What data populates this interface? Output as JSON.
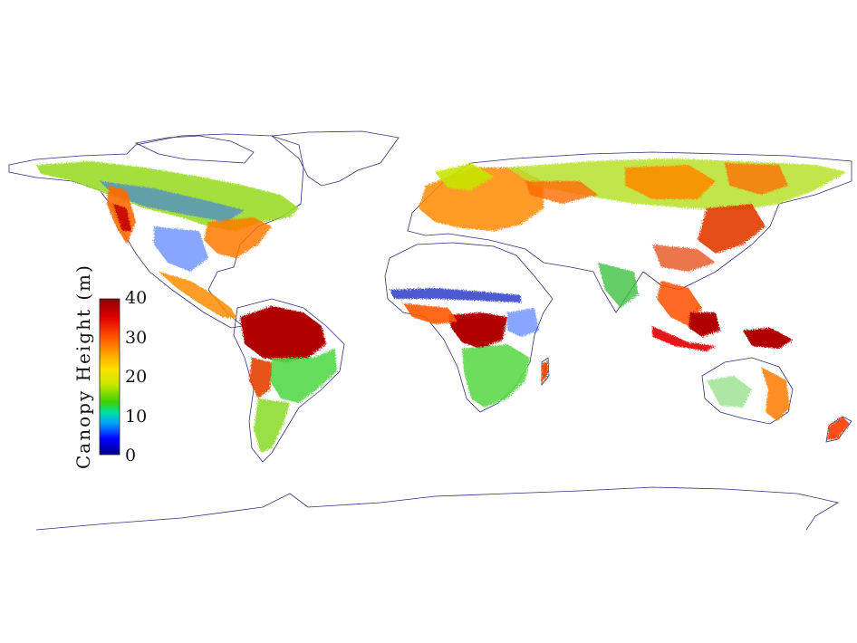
{
  "map": {
    "legend": {
      "title": "Canopy Height (m)",
      "ticks": [
        {
          "label": "40",
          "value": 40
        },
        {
          "label": "30",
          "value": 30
        },
        {
          "label": "20",
          "value": 20
        },
        {
          "label": "10",
          "value": 10
        },
        {
          "label": "0",
          "value": 0
        }
      ],
      "range": [
        0,
        40
      ],
      "colormap": [
        "#00008b",
        "#0000ff",
        "#00a0ff",
        "#00e0a0",
        "#40d000",
        "#c8e600",
        "#ffe000",
        "#ffa000",
        "#ff5000",
        "#e00000",
        "#8b0000"
      ]
    },
    "colors": {
      "coastline": "#30307a",
      "background": "#ffffff"
    },
    "projection": "equirectangular"
  }
}
